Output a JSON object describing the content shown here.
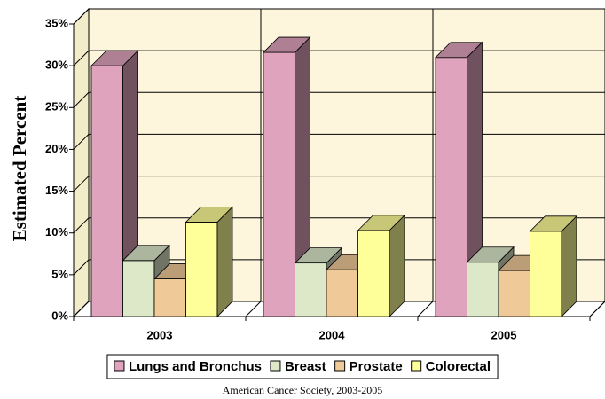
{
  "chart_data": {
    "type": "bar3d",
    "y_axis_label": "Estimated Percent",
    "source": "American Cancer Society, 2003-2005",
    "categories": [
      "2003",
      "2004",
      "2005"
    ],
    "series": [
      {
        "name": "Lungs and Bronchus",
        "color": "#e0a3bd",
        "values": [
          30,
          31.6,
          31
        ]
      },
      {
        "name": "Breast",
        "color": "#dde8c9",
        "values": [
          6.7,
          6.4,
          6.5
        ]
      },
      {
        "name": "Prostate",
        "color": "#f0c998",
        "values": [
          4.5,
          5.6,
          5.5
        ]
      },
      {
        "name": "Colorectal",
        "color": "#ffff99",
        "values": [
          11.3,
          10.3,
          10.2
        ]
      }
    ],
    "ylim": [
      0,
      35
    ],
    "yticks": [
      {
        "value": 0,
        "label": "0%"
      },
      {
        "value": 5,
        "label": "5%"
      },
      {
        "value": 10,
        "label": "10%"
      },
      {
        "value": 15,
        "label": "15%"
      },
      {
        "value": 20,
        "label": "20%"
      },
      {
        "value": 25,
        "label": "25%"
      },
      {
        "value": 30,
        "label": "30%"
      },
      {
        "value": 35,
        "label": "35%"
      }
    ],
    "grid": true
  }
}
